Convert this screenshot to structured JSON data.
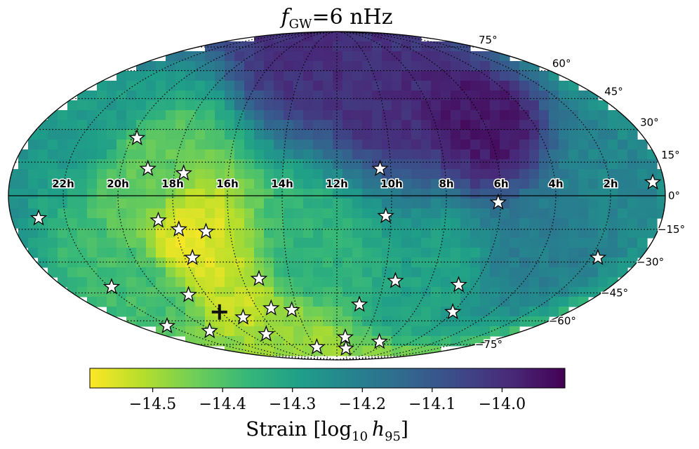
{
  "chart_data": {
    "type": "heatmap",
    "projection": "mollweide",
    "title": {
      "symbol": "f",
      "sub": "GW",
      "rest": "=6 nHz"
    },
    "ra_tick_labels": [
      "22h",
      "20h",
      "18h",
      "16h",
      "14h",
      "12h",
      "10h",
      "8h",
      "6h",
      "4h",
      "2h"
    ],
    "ra_tick_values_hours": [
      22,
      20,
      18,
      16,
      14,
      12,
      10,
      8,
      6,
      4,
      2
    ],
    "dec_tick_labels": [
      "75°",
      "60°",
      "45°",
      "30°",
      "15°",
      "0°",
      "−15°",
      "−30°",
      "−45°",
      "−60°",
      "−75°"
    ],
    "dec_tick_values_deg": [
      75,
      60,
      45,
      30,
      15,
      0,
      -15,
      -30,
      -45,
      -60,
      -75
    ],
    "colorbar": {
      "label_main": "Strain [log",
      "label_sub": "10",
      "label_var": "h",
      "label_var_sub": "95",
      "label_close": "]",
      "range": [
        -14.59,
        -13.91
      ],
      "reversed": true,
      "tick_values": [
        -14.5,
        -14.4,
        -14.3,
        -14.2,
        -14.1,
        -14.0
      ],
      "tick_labels": [
        "−14.5",
        "−14.4",
        "−14.3",
        "−14.2",
        "−14.1",
        "−14.0"
      ],
      "colormap_stops": [
        "#fde725",
        "#b5de2b",
        "#6ece58",
        "#35b779",
        "#1f9e89",
        "#26828e",
        "#31688e",
        "#3e4989",
        "#482878",
        "#440154"
      ]
    },
    "strain_regions": [
      {
        "ra_h": 17.5,
        "dec": -20,
        "value": -14.56
      },
      {
        "ra_h": 16.8,
        "dec": -55,
        "value": -14.53
      },
      {
        "ra_h": 15.0,
        "dec": -68,
        "value": -14.48
      },
      {
        "ra_h": 19.0,
        "dec": 10,
        "value": -14.42
      },
      {
        "ra_h": 20.5,
        "dec": -40,
        "value": -14.38
      },
      {
        "ra_h": 13.0,
        "dec": -30,
        "value": -14.35
      },
      {
        "ra_h": 8.0,
        "dec": -40,
        "value": -14.3
      },
      {
        "ra_h": 4.0,
        "dec": -20,
        "value": -14.2
      },
      {
        "ra_h": 10.0,
        "dec": 50,
        "value": -14.0
      },
      {
        "ra_h": 6.0,
        "dec": 35,
        "value": -13.95
      },
      {
        "ra_h": 14.0,
        "dec": 70,
        "value": -14.0
      },
      {
        "ra_h": 2.0,
        "dec": 5,
        "value": -14.22
      },
      {
        "ra_h": 22.0,
        "dec": 30,
        "value": -14.28
      }
    ],
    "pulsars": [
      {
        "ra_h": 19.8,
        "dec": 26
      },
      {
        "ra_h": 19.0,
        "dec": 12
      },
      {
        "ra_h": 17.65,
        "dec": 10
      },
      {
        "ra_h": 10.4,
        "dec": 12
      },
      {
        "ra_h": 0.42,
        "dec": 6
      },
      {
        "ra_h": 23.0,
        "dec": -10
      },
      {
        "ra_h": 18.6,
        "dec": -11
      },
      {
        "ra_h": 17.9,
        "dec": -15
      },
      {
        "ra_h": 16.9,
        "dec": -16
      },
      {
        "ra_h": 10.2,
        "dec": -9
      },
      {
        "ra_h": 6.1,
        "dec": -3
      },
      {
        "ra_h": 17.7,
        "dec": -28
      },
      {
        "ra_h": 15.3,
        "dec": -38
      },
      {
        "ra_h": 9.5,
        "dec": -39
      },
      {
        "ra_h": 6.7,
        "dec": -41
      },
      {
        "ra_h": 1.7,
        "dec": -28
      },
      {
        "ra_h": 21.9,
        "dec": -42
      },
      {
        "ra_h": 18.8,
        "dec": -46
      },
      {
        "ra_h": 22.2,
        "dec": -63
      },
      {
        "ra_h": 20.2,
        "dec": -66
      },
      {
        "ra_h": 17.1,
        "dec": -58
      },
      {
        "ra_h": 15.3,
        "dec": -53
      },
      {
        "ra_h": 14.3,
        "dec": -54
      },
      {
        "ra_h": 10.9,
        "dec": -51
      },
      {
        "ra_h": 6.0,
        "dec": -55
      },
      {
        "ra_h": 16.8,
        "dec": -68
      },
      {
        "ra_h": 11.4,
        "dec": -70
      },
      {
        "ra_h": 8.6,
        "dec": -73
      },
      {
        "ra_h": 13.9,
        "dec": -77
      },
      {
        "ra_h": 11.1,
        "dec": -78
      }
    ],
    "marker": {
      "ra_h": 18.07,
      "dec": -55,
      "symbol": "+"
    }
  }
}
